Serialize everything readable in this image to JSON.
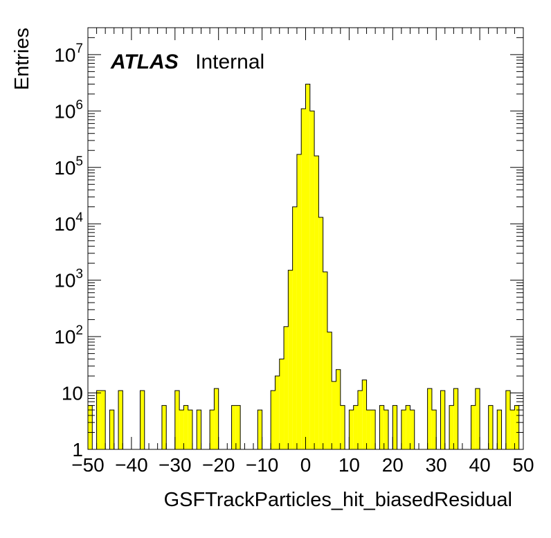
{
  "chart_data": {
    "type": "histogram",
    "title": "",
    "xlabel": "GSFTrackParticles_hit_biasedResidual",
    "ylabel": "Entries",
    "xlim": [
      -50,
      50
    ],
    "ylim": [
      1,
      30000000
    ],
    "yscale": "log",
    "bin_width": 1,
    "grid": false,
    "legend": "none",
    "fill_color": "#ffff00",
    "line_color": "#000000",
    "atlas_label": {
      "bold": "ATLAS",
      "text": "Internal"
    },
    "x_tick_labels": [
      "−50",
      "−40",
      "−30",
      "−20",
      "−10",
      "0",
      "10",
      "20",
      "30",
      "40",
      "50"
    ],
    "x_ticks": [
      -50,
      -40,
      -30,
      -20,
      -10,
      0,
      10,
      20,
      30,
      40,
      50
    ],
    "y_ticks": [
      {
        "value": 1,
        "base": "1",
        "sup": ""
      },
      {
        "value": 10,
        "base": "10",
        "sup": ""
      },
      {
        "value": 100,
        "base": "10",
        "sup": "2"
      },
      {
        "value": 1000,
        "base": "10",
        "sup": "3"
      },
      {
        "value": 10000,
        "base": "10",
        "sup": "4"
      },
      {
        "value": 100000,
        "base": "10",
        "sup": "5"
      },
      {
        "value": 1000000,
        "base": "10",
        "sup": "6"
      },
      {
        "value": 10000000,
        "base": "10",
        "sup": "7"
      }
    ],
    "bins": [
      {
        "x": -50,
        "y": 6
      },
      {
        "x": -48,
        "y": 11
      },
      {
        "x": -47,
        "y": 11
      },
      {
        "x": -45,
        "y": 5
      },
      {
        "x": -43,
        "y": 11
      },
      {
        "x": -38,
        "y": 11
      },
      {
        "x": -33,
        "y": 6
      },
      {
        "x": -30,
        "y": 11
      },
      {
        "x": -29,
        "y": 5
      },
      {
        "x": -28,
        "y": 6
      },
      {
        "x": -27,
        "y": 5
      },
      {
        "x": -25,
        "y": 5
      },
      {
        "x": -22,
        "y": 5
      },
      {
        "x": -21,
        "y": 12
      },
      {
        "x": -17,
        "y": 6
      },
      {
        "x": -16,
        "y": 6
      },
      {
        "x": -11,
        "y": 5
      },
      {
        "x": -8,
        "y": 11
      },
      {
        "x": -7,
        "y": 20
      },
      {
        "x": -6,
        "y": 40
      },
      {
        "x": -5,
        "y": 150
      },
      {
        "x": -4,
        "y": 1500
      },
      {
        "x": -3,
        "y": 20000
      },
      {
        "x": -2,
        "y": 170000
      },
      {
        "x": -1,
        "y": 1100000
      },
      {
        "x": 0,
        "y": 3000000
      },
      {
        "x": 1,
        "y": 1000000
      },
      {
        "x": 2,
        "y": 160000
      },
      {
        "x": 3,
        "y": 13000
      },
      {
        "x": 4,
        "y": 1400
      },
      {
        "x": 5,
        "y": 120
      },
      {
        "x": 6,
        "y": 16
      },
      {
        "x": 7,
        "y": 26
      },
      {
        "x": 8,
        "y": 6
      },
      {
        "x": 10,
        "y": 5
      },
      {
        "x": 11,
        "y": 6
      },
      {
        "x": 12,
        "y": 11
      },
      {
        "x": 13,
        "y": 17
      },
      {
        "x": 14,
        "y": 5
      },
      {
        "x": 15,
        "y": 5
      },
      {
        "x": 17,
        "y": 6
      },
      {
        "x": 18,
        "y": 5
      },
      {
        "x": 20,
        "y": 6
      },
      {
        "x": 22,
        "y": 5
      },
      {
        "x": 23,
        "y": 6
      },
      {
        "x": 24,
        "y": 5
      },
      {
        "x": 28,
        "y": 12
      },
      {
        "x": 29,
        "y": 5
      },
      {
        "x": 31,
        "y": 11
      },
      {
        "x": 33,
        "y": 6
      },
      {
        "x": 34,
        "y": 12
      },
      {
        "x": 38,
        "y": 6
      },
      {
        "x": 39,
        "y": 12
      },
      {
        "x": 42,
        "y": 6
      },
      {
        "x": 44,
        "y": 5
      },
      {
        "x": 46,
        "y": 11
      },
      {
        "x": 47,
        "y": 5
      },
      {
        "x": 48,
        "y": 6
      }
    ]
  }
}
